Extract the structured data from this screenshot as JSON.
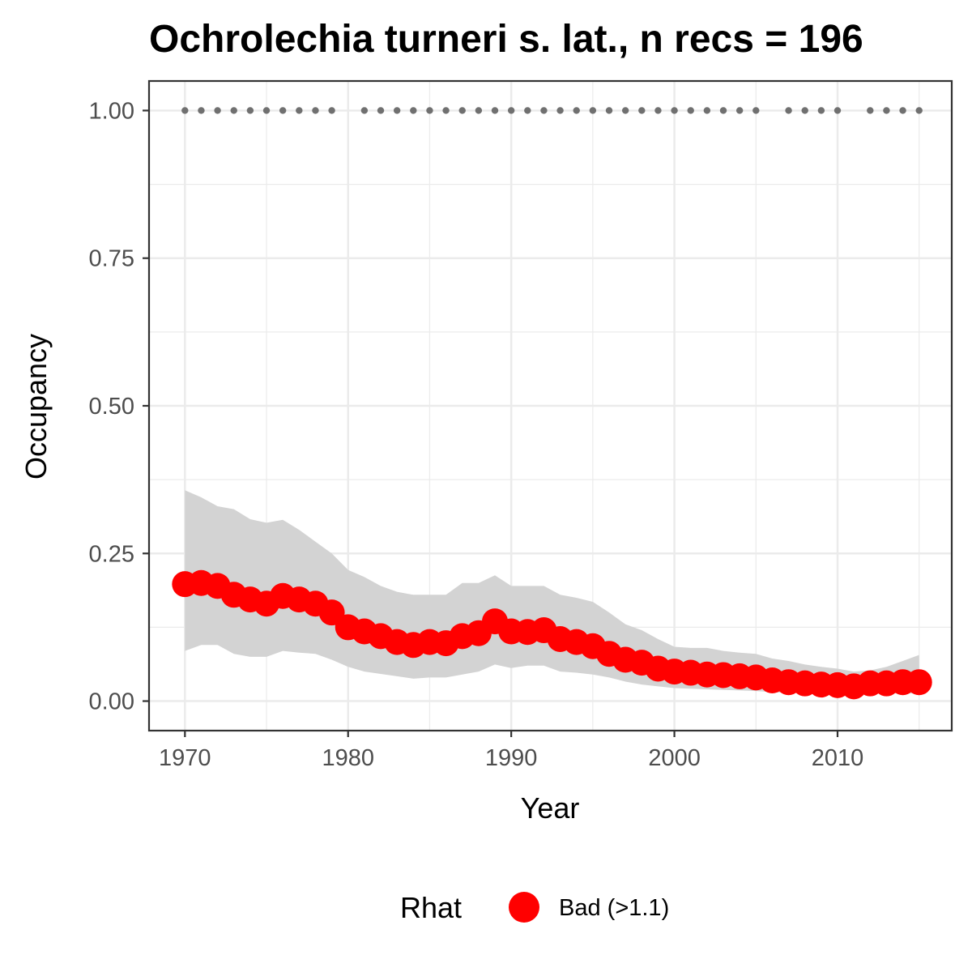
{
  "chart_data": {
    "type": "line",
    "title": "Ochrolechia turneri s. lat., n recs = 196",
    "xlabel": "Year",
    "ylabel": "Occupancy",
    "xlim": [
      1967.8,
      2017
    ],
    "ylim": [
      -0.05,
      1.05
    ],
    "x_ticks": [
      1970,
      1980,
      1990,
      2000,
      2010
    ],
    "x_tick_labels": [
      "1970",
      "1980",
      "1990",
      "2000",
      "2010"
    ],
    "y_ticks": [
      0,
      0.25,
      0.5,
      0.75,
      1.0
    ],
    "y_tick_labels": [
      "0.00",
      "0.25",
      "0.50",
      "0.75",
      "1.00"
    ],
    "grid": true,
    "legend": {
      "title": "Rhat",
      "position": "bottom",
      "items": [
        {
          "label": "Bad (>1.1)",
          "color": "#ff0000"
        }
      ]
    },
    "series": [
      {
        "name": "Bad (>1.1)",
        "color": "#ff0000",
        "x": [
          1970,
          1971,
          1972,
          1973,
          1974,
          1975,
          1976,
          1977,
          1978,
          1979,
          1980,
          1981,
          1982,
          1983,
          1984,
          1985,
          1986,
          1987,
          1988,
          1989,
          1990,
          1991,
          1992,
          1993,
          1994,
          1995,
          1996,
          1997,
          1998,
          1999,
          2000,
          2001,
          2002,
          2003,
          2004,
          2005,
          2006,
          2007,
          2008,
          2009,
          2010,
          2011,
          2012,
          2013,
          2014,
          2015
        ],
        "y": [
          0.198,
          0.2,
          0.195,
          0.18,
          0.172,
          0.165,
          0.178,
          0.172,
          0.165,
          0.15,
          0.125,
          0.118,
          0.11,
          0.1,
          0.095,
          0.1,
          0.098,
          0.11,
          0.115,
          0.135,
          0.118,
          0.117,
          0.12,
          0.105,
          0.1,
          0.093,
          0.08,
          0.07,
          0.065,
          0.055,
          0.05,
          0.048,
          0.045,
          0.044,
          0.042,
          0.04,
          0.035,
          0.032,
          0.03,
          0.028,
          0.027,
          0.025,
          0.03,
          0.03,
          0.032,
          0.032
        ]
      }
    ],
    "ribbon": {
      "color": "#d3d3d3",
      "lower": [
        0.085,
        0.095,
        0.095,
        0.08,
        0.075,
        0.075,
        0.085,
        0.082,
        0.08,
        0.07,
        0.058,
        0.05,
        0.046,
        0.042,
        0.038,
        0.04,
        0.04,
        0.045,
        0.05,
        0.062,
        0.056,
        0.06,
        0.06,
        0.05,
        0.048,
        0.045,
        0.04,
        0.033,
        0.028,
        0.025,
        0.022,
        0.021,
        0.02,
        0.019,
        0.018,
        0.017,
        0.015,
        0.014,
        0.013,
        0.012,
        0.012,
        0.011,
        0.012,
        0.013,
        0.013,
        0.013
      ],
      "upper": [
        0.357,
        0.345,
        0.33,
        0.325,
        0.308,
        0.302,
        0.307,
        0.29,
        0.27,
        0.25,
        0.222,
        0.21,
        0.195,
        0.185,
        0.18,
        0.18,
        0.18,
        0.2,
        0.2,
        0.213,
        0.195,
        0.195,
        0.195,
        0.18,
        0.175,
        0.168,
        0.15,
        0.13,
        0.12,
        0.105,
        0.092,
        0.09,
        0.09,
        0.085,
        0.082,
        0.08,
        0.072,
        0.068,
        0.062,
        0.058,
        0.055,
        0.05,
        0.052,
        0.058,
        0.068,
        0.078
      ]
    },
    "detections": {
      "color": "#707070",
      "y": 1.0,
      "x": [
        1970,
        1971,
        1972,
        1973,
        1974,
        1975,
        1976,
        1977,
        1978,
        1979,
        1981,
        1982,
        1983,
        1984,
        1985,
        1986,
        1987,
        1988,
        1989,
        1990,
        1991,
        1992,
        1993,
        1994,
        1995,
        1996,
        1997,
        1998,
        1999,
        2000,
        2001,
        2002,
        2003,
        2004,
        2005,
        2007,
        2008,
        2009,
        2010,
        2012,
        2013,
        2014,
        2015
      ]
    }
  }
}
